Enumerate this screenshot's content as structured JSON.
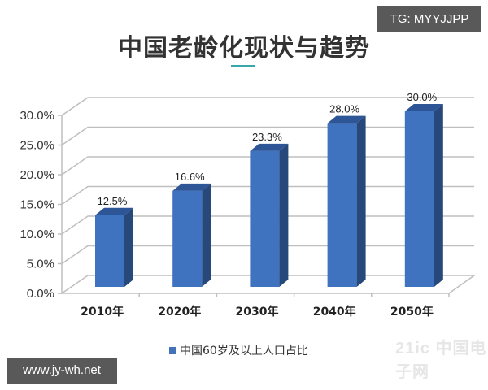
{
  "header": {
    "title": "中国老龄化现状与趋势",
    "tg_badge": "TG: MYYJJPP"
  },
  "footer": {
    "site_badge": "www.jy-wh.net",
    "watermark": "21ic 中国电子网"
  },
  "legend": {
    "label": "中国60岁及以上人口占比",
    "color": "#4472b8"
  },
  "colors": {
    "bar_front": "#3f72bf",
    "bar_side": "#27487a",
    "bar_top": "#2e5696",
    "grid": "#bfbfbf",
    "title_rule": "#3aa8a8"
  },
  "chart_data": {
    "type": "bar",
    "title": "中国老龄化现状与趋势",
    "categories": [
      "2010年",
      "2020年",
      "2030年",
      "2040年",
      "2050年"
    ],
    "series": [
      {
        "name": "中国60岁及以上人口占比",
        "values": [
          12.5,
          16.6,
          23.3,
          28.0,
          30.0
        ]
      }
    ],
    "value_labels": [
      "12.5%",
      "16.6%",
      "23.3%",
      "28.0%",
      "30.0%"
    ],
    "yticks": [
      "0.0%",
      "5.0%",
      "10.0%",
      "15.0%",
      "20.0%",
      "25.0%",
      "30.0%"
    ],
    "xlabel": "",
    "ylabel": "",
    "ylim": [
      0,
      30
    ],
    "grid": true,
    "style": "3d-column",
    "legend_position": "bottom"
  }
}
